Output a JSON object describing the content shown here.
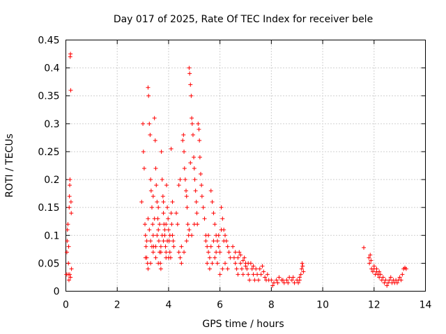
{
  "chart_data": {
    "type": "scatter",
    "title": "Day 017 of 2025, Rate Of TEC Index for receiver bele",
    "xlabel": "GPS time / hours",
    "ylabel": "ROTI / TECUs",
    "xlim": [
      0,
      14
    ],
    "ylim": [
      0,
      0.45
    ],
    "grid": true,
    "marker": "+",
    "color": "#ff0000",
    "x_ticks": [
      "0",
      "2",
      "4",
      "6",
      "8",
      "10",
      "12",
      "14"
    ],
    "y_ticks": [
      "0",
      "0.05",
      "0.1",
      "0.15",
      "0.2",
      "0.25",
      "0.3",
      "0.35",
      "0.4",
      "0.45"
    ],
    "series": [
      {
        "points": [
          [
            0.02,
            0.03
          ],
          [
            0.04,
            0.07
          ],
          [
            0.05,
            0.09
          ],
          [
            0.06,
            0.11
          ],
          [
            0.08,
            0.12
          ],
          [
            0.09,
            0.03
          ],
          [
            0.1,
            0.05
          ],
          [
            0.11,
            0.08
          ],
          [
            0.12,
            0.02
          ],
          [
            0.13,
            0.15
          ],
          [
            0.14,
            0.17
          ],
          [
            0.15,
            0.19
          ],
          [
            0.16,
            0.2
          ],
          [
            0.17,
            0.42
          ],
          [
            0.18,
            0.425
          ],
          [
            0.19,
            0.36
          ],
          [
            0.2,
            0.16
          ],
          [
            0.21,
            0.14
          ],
          [
            0.22,
            0.04
          ],
          [
            0.15,
            0.03
          ],
          [
            0.18,
            0.025
          ],
          [
            2.95,
            0.16
          ],
          [
            3.0,
            0.3
          ],
          [
            3.02,
            0.25
          ],
          [
            3.05,
            0.22
          ],
          [
            3.08,
            0.12
          ],
          [
            3.1,
            0.1
          ],
          [
            3.12,
            0.08
          ],
          [
            3.15,
            0.06
          ],
          [
            3.18,
            0.05
          ],
          [
            3.2,
            0.365
          ],
          [
            3.22,
            0.35
          ],
          [
            3.25,
            0.3
          ],
          [
            3.28,
            0.28
          ],
          [
            3.3,
            0.2
          ],
          [
            3.32,
            0.18
          ],
          [
            3.35,
            0.15
          ],
          [
            3.38,
            0.12
          ],
          [
            3.4,
            0.1
          ],
          [
            3.42,
            0.08
          ],
          [
            3.45,
            0.31
          ],
          [
            3.48,
            0.27
          ],
          [
            3.5,
            0.22
          ],
          [
            3.52,
            0.19
          ],
          [
            3.55,
            0.16
          ],
          [
            3.58,
            0.13
          ],
          [
            3.6,
            0.11
          ],
          [
            3.62,
            0.09
          ],
          [
            3.65,
            0.07
          ],
          [
            3.68,
            0.05
          ],
          [
            3.7,
            0.04
          ],
          [
            3.72,
            0.25
          ],
          [
            3.75,
            0.2
          ],
          [
            3.78,
            0.17
          ],
          [
            3.8,
            0.14
          ],
          [
            3.82,
            0.12
          ],
          [
            3.85,
            0.1
          ],
          [
            3.88,
            0.08
          ],
          [
            3.9,
            0.06
          ],
          [
            3.92,
            0.19
          ],
          [
            3.95,
            0.15
          ],
          [
            3.98,
            0.13
          ],
          [
            4.0,
            0.11
          ],
          [
            4.02,
            0.09
          ],
          [
            4.05,
            0.07
          ],
          [
            4.08,
            0.06
          ],
          [
            4.1,
            0.255
          ],
          [
            4.12,
            0.12
          ],
          [
            4.15,
            0.1
          ],
          [
            4.18,
            0.09
          ],
          [
            4.2,
            0.08
          ],
          [
            3.1,
            0.06
          ],
          [
            3.2,
            0.04
          ],
          [
            3.3,
            0.05
          ],
          [
            3.4,
            0.07
          ],
          [
            3.5,
            0.06
          ],
          [
            3.6,
            0.05
          ],
          [
            3.7,
            0.08
          ],
          [
            3.8,
            0.09
          ],
          [
            3.9,
            0.07
          ],
          [
            4.0,
            0.06
          ],
          [
            3.15,
            0.09
          ],
          [
            3.25,
            0.11
          ],
          [
            3.35,
            0.08
          ],
          [
            3.45,
            0.13
          ],
          [
            3.55,
            0.1
          ],
          [
            3.65,
            0.12
          ],
          [
            3.75,
            0.1
          ],
          [
            3.85,
            0.11
          ],
          [
            3.95,
            0.09
          ],
          [
            4.05,
            0.1
          ],
          [
            3.3,
            0.09
          ],
          [
            3.5,
            0.08
          ],
          [
            3.7,
            0.07
          ],
          [
            3.9,
            0.12
          ],
          [
            3.6,
            0.15
          ],
          [
            3.4,
            0.17
          ],
          [
            3.2,
            0.13
          ],
          [
            3.8,
            0.16
          ],
          [
            4.1,
            0.14
          ],
          [
            4.15,
            0.16
          ],
          [
            4.3,
            0.14
          ],
          [
            4.35,
            0.12
          ],
          [
            4.4,
            0.07
          ],
          [
            4.45,
            0.06
          ],
          [
            4.5,
            0.05
          ],
          [
            4.55,
            0.27
          ],
          [
            4.58,
            0.28
          ],
          [
            4.6,
            0.25
          ],
          [
            4.62,
            0.22
          ],
          [
            4.65,
            0.2
          ],
          [
            4.68,
            0.18
          ],
          [
            4.7,
            0.17
          ],
          [
            4.72,
            0.15
          ],
          [
            4.75,
            0.12
          ],
          [
            4.78,
            0.1
          ],
          [
            4.8,
            0.4
          ],
          [
            4.82,
            0.39
          ],
          [
            4.85,
            0.37
          ],
          [
            4.88,
            0.35
          ],
          [
            4.9,
            0.31
          ],
          [
            4.92,
            0.3
          ],
          [
            4.95,
            0.28
          ],
          [
            4.98,
            0.24
          ],
          [
            5.0,
            0.22
          ],
          [
            5.02,
            0.2
          ],
          [
            5.05,
            0.18
          ],
          [
            5.08,
            0.16
          ],
          [
            5.1,
            0.14
          ],
          [
            5.12,
            0.12
          ],
          [
            5.15,
            0.3
          ],
          [
            5.18,
            0.29
          ],
          [
            5.2,
            0.27
          ],
          [
            5.22,
            0.24
          ],
          [
            5.25,
            0.21
          ],
          [
            5.28,
            0.19
          ],
          [
            5.3,
            0.17
          ],
          [
            4.5,
            0.08
          ],
          [
            4.6,
            0.07
          ],
          [
            4.7,
            0.09
          ],
          [
            4.8,
            0.11
          ],
          [
            4.9,
            0.1
          ],
          [
            5.0,
            0.12
          ],
          [
            4.4,
            0.19
          ],
          [
            4.45,
            0.2
          ],
          [
            4.85,
            0.23
          ],
          [
            5.35,
            0.15
          ],
          [
            5.4,
            0.13
          ],
          [
            5.45,
            0.1
          ],
          [
            5.5,
            0.08
          ],
          [
            5.55,
            0.07
          ],
          [
            5.6,
            0.06
          ],
          [
            5.65,
            0.18
          ],
          [
            5.7,
            0.16
          ],
          [
            5.75,
            0.14
          ],
          [
            5.8,
            0.12
          ],
          [
            5.85,
            0.1
          ],
          [
            5.9,
            0.09
          ],
          [
            5.95,
            0.08
          ],
          [
            6.0,
            0.07
          ],
          [
            6.05,
            0.15
          ],
          [
            6.1,
            0.13
          ],
          [
            6.15,
            0.11
          ],
          [
            6.2,
            0.1
          ],
          [
            6.25,
            0.09
          ],
          [
            6.3,
            0.08
          ],
          [
            6.35,
            0.07
          ],
          [
            6.4,
            0.06
          ],
          [
            5.5,
            0.05
          ],
          [
            5.6,
            0.04
          ],
          [
            5.7,
            0.05
          ],
          [
            5.8,
            0.06
          ],
          [
            5.9,
            0.05
          ],
          [
            6.0,
            0.03
          ],
          [
            6.1,
            0.04
          ],
          [
            6.2,
            0.05
          ],
          [
            6.3,
            0.04
          ],
          [
            5.45,
            0.09
          ],
          [
            5.55,
            0.1
          ],
          [
            5.65,
            0.08
          ],
          [
            5.75,
            0.09
          ],
          [
            5.85,
            0.07
          ],
          [
            5.95,
            0.1
          ],
          [
            6.05,
            0.11
          ],
          [
            6.15,
            0.09
          ],
          [
            6.5,
            0.08
          ],
          [
            6.55,
            0.06
          ],
          [
            6.6,
            0.05
          ],
          [
            6.65,
            0.04
          ],
          [
            6.7,
            0.03
          ],
          [
            6.75,
            0.07
          ],
          [
            6.8,
            0.05
          ],
          [
            6.85,
            0.04
          ],
          [
            6.9,
            0.03
          ],
          [
            6.95,
            0.06
          ],
          [
            7.0,
            0.05
          ],
          [
            7.05,
            0.04
          ],
          [
            7.1,
            0.03
          ],
          [
            7.15,
            0.02
          ],
          [
            7.2,
            0.05
          ],
          [
            7.25,
            0.04
          ],
          [
            7.3,
            0.03
          ],
          [
            7.35,
            0.02
          ],
          [
            7.4,
            0.04
          ],
          [
            7.45,
            0.03
          ],
          [
            7.5,
            0.02
          ],
          [
            7.55,
            0.04
          ],
          [
            7.6,
            0.03
          ],
          [
            7.65,
            0.045
          ],
          [
            7.7,
            0.035
          ],
          [
            7.75,
            0.025
          ],
          [
            7.8,
            0.02
          ],
          [
            7.85,
            0.03
          ],
          [
            7.9,
            0.02
          ],
          [
            6.6,
            0.07
          ],
          [
            6.7,
            0.06
          ],
          [
            6.8,
            0.065
          ],
          [
            6.9,
            0.055
          ],
          [
            7.0,
            0.045
          ],
          [
            7.1,
            0.05
          ],
          [
            7.3,
            0.045
          ],
          [
            8.0,
            0.02
          ],
          [
            8.1,
            0.015
          ],
          [
            8.2,
            0.02
          ],
          [
            8.3,
            0.025
          ],
          [
            8.4,
            0.02
          ],
          [
            8.5,
            0.015
          ],
          [
            8.6,
            0.02
          ],
          [
            8.7,
            0.025
          ],
          [
            8.8,
            0.02
          ],
          [
            8.9,
            0.015
          ],
          [
            9.0,
            0.02
          ],
          [
            9.05,
            0.015
          ],
          [
            9.1,
            0.02
          ],
          [
            9.15,
            0.03
          ],
          [
            9.18,
            0.04
          ],
          [
            9.2,
            0.05
          ],
          [
            9.22,
            0.045
          ],
          [
            9.25,
            0.035
          ],
          [
            8.05,
            0.01
          ],
          [
            8.25,
            0.015
          ],
          [
            8.45,
            0.02
          ],
          [
            8.65,
            0.015
          ],
          [
            8.85,
            0.025
          ],
          [
            9.1,
            0.025
          ],
          [
            11.6,
            0.078
          ],
          [
            11.8,
            0.06
          ],
          [
            11.85,
            0.065
          ],
          [
            11.9,
            0.04
          ],
          [
            11.95,
            0.035
          ],
          [
            12.0,
            0.04
          ],
          [
            12.05,
            0.03
          ],
          [
            12.1,
            0.035
          ],
          [
            12.15,
            0.03
          ],
          [
            12.2,
            0.025
          ],
          [
            12.25,
            0.03
          ],
          [
            12.3,
            0.02
          ],
          [
            12.35,
            0.025
          ],
          [
            12.4,
            0.015
          ],
          [
            12.45,
            0.02
          ],
          [
            12.5,
            0.01
          ],
          [
            12.55,
            0.015
          ],
          [
            12.6,
            0.02
          ],
          [
            12.65,
            0.025
          ],
          [
            12.7,
            0.015
          ],
          [
            12.75,
            0.02
          ],
          [
            12.8,
            0.015
          ],
          [
            12.85,
            0.02
          ],
          [
            12.9,
            0.015
          ],
          [
            12.95,
            0.02
          ],
          [
            13.0,
            0.025
          ],
          [
            13.05,
            0.02
          ],
          [
            13.1,
            0.03
          ],
          [
            13.15,
            0.04
          ],
          [
            13.2,
            0.042
          ],
          [
            13.25,
            0.04
          ],
          [
            11.82,
            0.05
          ],
          [
            11.88,
            0.055
          ],
          [
            12.0,
            0.045
          ],
          [
            12.1,
            0.04
          ],
          [
            12.2,
            0.035
          ]
        ]
      }
    ]
  }
}
